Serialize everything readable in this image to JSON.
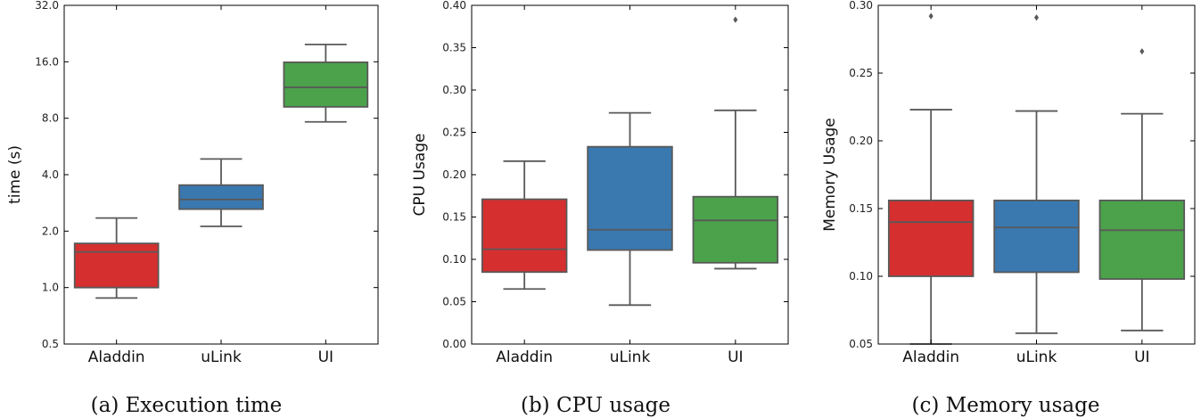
{
  "chart_data": [
    {
      "type": "box",
      "caption": "(a)  Execution time",
      "ylabel": "time (s)",
      "yscale": "log2",
      "ylim": [
        0.5,
        32.0
      ],
      "yticks": [
        0.5,
        1.0,
        2.0,
        4.0,
        8.0,
        16.0,
        32.0
      ],
      "ytick_labels": [
        "0.5",
        "1.0",
        "2.0",
        "4.0",
        "8.0",
        "16.0",
        "32.0"
      ],
      "categories": [
        "Aladdin",
        "uLink",
        "UI"
      ],
      "colors": [
        "#d62f2f",
        "#3a78b0",
        "#4ba24b"
      ],
      "boxes": [
        {
          "whislo": 0.88,
          "q1": 1.0,
          "median": 1.55,
          "q3": 1.72,
          "whishi": 2.35,
          "fliers": []
        },
        {
          "whislo": 2.12,
          "q1": 2.62,
          "median": 2.95,
          "q3": 3.52,
          "whishi": 4.85,
          "fliers": []
        },
        {
          "whislo": 7.65,
          "q1": 9.2,
          "median": 11.7,
          "q3": 15.9,
          "whishi": 19.8,
          "fliers": []
        }
      ]
    },
    {
      "type": "box",
      "caption": "(b)  CPU usage",
      "ylabel": "CPU Usage",
      "yscale": "linear",
      "ylim": [
        0.0,
        0.4
      ],
      "yticks": [
        0.0,
        0.05,
        0.1,
        0.15,
        0.2,
        0.25,
        0.3,
        0.35,
        0.4
      ],
      "ytick_labels": [
        "0.00",
        "0.05",
        "0.10",
        "0.15",
        "0.20",
        "0.25",
        "0.30",
        "0.35",
        "0.40"
      ],
      "categories": [
        "Aladdin",
        "uLink",
        "UI"
      ],
      "colors": [
        "#d62f2f",
        "#3a78b0",
        "#4ba24b"
      ],
      "boxes": [
        {
          "whislo": 0.065,
          "q1": 0.085,
          "median": 0.112,
          "q3": 0.171,
          "whishi": 0.216,
          "fliers": []
        },
        {
          "whislo": 0.046,
          "q1": 0.111,
          "median": 0.135,
          "q3": 0.233,
          "whishi": 0.273,
          "fliers": []
        },
        {
          "whislo": 0.089,
          "q1": 0.096,
          "median": 0.146,
          "q3": 0.174,
          "whishi": 0.276,
          "fliers": [
            0.383
          ]
        }
      ]
    },
    {
      "type": "box",
      "caption": "(c)  Memory usage",
      "ylabel": "Memory Usage",
      "yscale": "linear",
      "ylim": [
        0.05,
        0.3
      ],
      "yticks": [
        0.05,
        0.1,
        0.15,
        0.2,
        0.25,
        0.3
      ],
      "ytick_labels": [
        "0.05",
        "0.10",
        "0.15",
        "0.20",
        "0.25",
        "0.30"
      ],
      "categories": [
        "Aladdin",
        "uLink",
        "UI"
      ],
      "colors": [
        "#d62f2f",
        "#3a78b0",
        "#4ba24b"
      ],
      "boxes": [
        {
          "whislo": 0.05,
          "q1": 0.1,
          "median": 0.14,
          "q3": 0.156,
          "whishi": 0.223,
          "fliers": [
            0.292
          ]
        },
        {
          "whislo": 0.058,
          "q1": 0.103,
          "median": 0.136,
          "q3": 0.156,
          "whishi": 0.222,
          "fliers": [
            0.291
          ]
        },
        {
          "whislo": 0.06,
          "q1": 0.098,
          "median": 0.134,
          "q3": 0.156,
          "whishi": 0.22,
          "fliers": [
            0.266
          ]
        }
      ]
    }
  ]
}
